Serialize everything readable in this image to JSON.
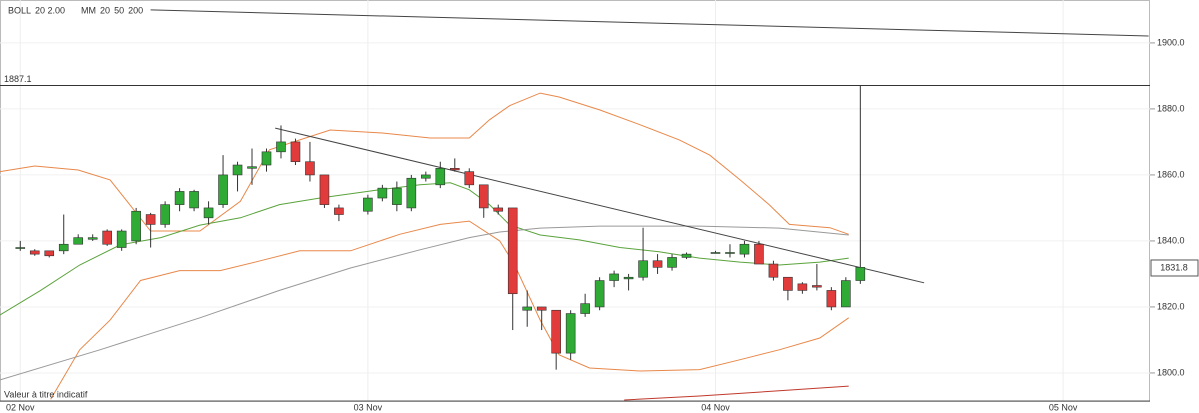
{
  "chart_data": {
    "type": "candlestick",
    "indicators": [
      {
        "name": "BOLL",
        "params": [
          {
            "text": "20 2.00",
            "color": "#e8884a"
          }
        ]
      },
      {
        "name": "MM",
        "params": [
          {
            "text": "20",
            "color": "#5aa33c"
          },
          {
            "text": "50",
            "color": "#999999"
          },
          {
            "text": "200",
            "color": "#c0392b"
          }
        ]
      }
    ],
    "up_color": "#2eaa35",
    "down_color": "#e23b3b",
    "x": [
      0,
      1,
      2,
      3,
      4,
      5,
      6,
      7,
      8,
      9,
      10,
      11,
      12,
      13,
      14,
      15,
      16,
      17,
      18,
      19,
      20,
      21,
      22,
      24,
      25,
      26,
      27,
      28,
      29,
      30,
      31,
      32,
      33,
      34,
      35,
      36,
      37,
      38,
      39,
      40,
      41,
      42,
      43,
      44,
      45,
      46,
      48,
      49,
      50,
      51,
      52,
      53,
      54,
      55,
      56,
      57,
      58
    ],
    "open": [
      1838,
      1837,
      1837,
      1837,
      1839,
      1840.5,
      1843,
      1838,
      1840,
      1848,
      1845,
      1851,
      1850,
      1847,
      1851,
      1860,
      1862,
      1863,
      1867,
      1870,
      1864,
      1860,
      1850,
      1849,
      1853,
      1851,
      1850,
      1859,
      1857,
      1862,
      1861,
      1857,
      1850,
      1850,
      1819,
      1820,
      1819,
      1806,
      1818,
      1820,
      1828,
      1828.5,
      1829,
      1834,
      1832,
      1835,
      1836.5,
      1836.5,
      1836,
      1839,
      1833,
      1829,
      1827,
      1826.5,
      1825,
      1820,
      1828
    ],
    "high": [
      1840,
      1837.5,
      1837,
      1848,
      1842,
      1842,
      1843.5,
      1843.5,
      1850,
      1848.5,
      1852,
      1856,
      1855.5,
      1852,
      1866,
      1864,
      1868,
      1868,
      1875,
      1871,
      1870,
      1860,
      1851,
      1854,
      1857,
      1858,
      1860,
      1861,
      1864,
      1865,
      1862,
      1857,
      1851,
      1850,
      1825,
      1820,
      1819,
      1819,
      1824,
      1829,
      1831,
      1830,
      1844,
      1836,
      1836,
      1836.5,
      1837,
      1839,
      1840,
      1840,
      1834,
      1829,
      1827.5,
      1833,
      1826,
      1829,
      1887.1
    ],
    "low": [
      1837,
      1835.5,
      1835,
      1836,
      1839,
      1840,
      1838.5,
      1837,
      1839,
      1838,
      1844,
      1849,
      1849,
      1845,
      1850,
      1855,
      1857,
      1861,
      1865,
      1863,
      1858,
      1850,
      1846,
      1848,
      1852,
      1849,
      1849,
      1858,
      1856,
      1861,
      1856,
      1847,
      1848,
      1813,
      1814,
      1813,
      1801,
      1804,
      1817,
      1819,
      1826,
      1825,
      1828,
      1830,
      1831,
      1834.5,
      1836.5,
      1835,
      1835,
      1833,
      1828,
      1822,
      1824,
      1825,
      1819,
      1820,
      1827
    ],
    "close": [
      1838,
      1836,
      1835.5,
      1839,
      1841,
      1841,
      1839,
      1843,
      1849,
      1845,
      1851,
      1855,
      1855,
      1850,
      1860,
      1863,
      1862.5,
      1867,
      1870,
      1864,
      1860,
      1851,
      1848,
      1853,
      1856,
      1856,
      1859,
      1860,
      1862,
      1861.5,
      1857,
      1850,
      1849,
      1824,
      1820,
      1819,
      1806,
      1818,
      1821,
      1828,
      1830,
      1829,
      1834,
      1832,
      1835,
      1836,
      1836.5,
      1836.5,
      1839,
      1833,
      1829,
      1825,
      1825,
      1826,
      1820,
      1828,
      1832
    ],
    "lines": [
      {
        "color": "#e8884a",
        "x": [
          -1.4,
          1,
          4,
          6.2,
          9,
          12.4,
          15.2,
          17.2,
          19.3,
          21.4,
          25,
          28.3,
          31,
          32.4,
          33.8,
          35.9,
          37.2,
          40,
          42.8,
          45.5,
          47.6,
          49.7,
          51.7,
          53.1,
          55.9,
          57.2
        ],
        "values": [
          1861,
          1862.7,
          1861.5,
          1858.5,
          1843,
          1843,
          1852,
          1867.6,
          1870.6,
          1873.6,
          1872.7,
          1871.2,
          1871.2,
          1876.7,
          1881,
          1884.8,
          1883.6,
          1879.7,
          1875.2,
          1870.6,
          1866,
          1858.5,
          1851,
          1845,
          1844,
          1842
        ]
      },
      {
        "color": "#e8884a",
        "x": [
          2.1,
          4.1,
          6.2,
          8.3,
          11,
          13.8,
          16.6,
          19.3,
          22.8,
          26.2,
          29,
          31,
          33.1,
          34.1,
          35.9,
          37.2,
          39.3,
          42.8,
          46.9,
          49.7,
          52.4,
          55.2,
          57.2
        ],
        "values": [
          1792,
          1807,
          1816,
          1828,
          1831,
          1831,
          1834,
          1837,
          1837,
          1842,
          1845,
          1846,
          1840,
          1833,
          1816,
          1805.5,
          1801.5,
          1800.6,
          1801,
          1804,
          1807,
          1810.6,
          1816.7
        ]
      },
      {
        "color": "#5aa33c",
        "x": [
          -1.4,
          1.4,
          4.1,
          6.9,
          9.7,
          12.4,
          15.2,
          17.9,
          20.7,
          24.8,
          27.6,
          29.7,
          31,
          32.4,
          33.8,
          35.9,
          38.6,
          41.4,
          44.1,
          46.9,
          49.7,
          52.4,
          55.2,
          57.2
        ],
        "values": [
          1817.6,
          1825,
          1832.7,
          1838.8,
          1841,
          1844.8,
          1847,
          1851,
          1853,
          1855.5,
          1857,
          1857.6,
          1855.5,
          1851,
          1844.8,
          1841.8,
          1840.3,
          1838,
          1836.7,
          1834.8,
          1833.6,
          1832.7,
          1833.6,
          1834.8
        ]
      },
      {
        "color": "#999999",
        "x": [
          -1.4,
          5.5,
          12.4,
          17.9,
          22.8,
          27.6,
          31,
          33.1,
          35.9,
          40,
          46.9,
          52.4,
          57.2
        ],
        "values": [
          1797.9,
          1807,
          1816.7,
          1825,
          1831.8,
          1837.3,
          1841,
          1842.7,
          1843.9,
          1844.5,
          1844.5,
          1843.9,
          1841.8
        ]
      },
      {
        "color": "#c0392b",
        "x": [
          41.7,
          46.9,
          52.4,
          57.2
        ],
        "values": [
          1791.8,
          1793,
          1794.6,
          1796
        ]
      }
    ],
    "trendlines": [
      {
        "x": [
          17.6,
          62.4
        ],
        "values": [
          1874.2,
          1827.3
        ]
      },
      {
        "x": [
          9,
          77.9
        ],
        "values": [
          1910,
          1902.1
        ]
      }
    ],
    "level": {
      "value": 1887.1,
      "label": "1887.1"
    },
    "last_price": {
      "value": 1831.8,
      "label": "1831.8"
    },
    "footnote": "Valeur à titre indicatif",
    "xlim": [
      -1.4,
      78
    ],
    "xticks": [
      {
        "value": 0,
        "label": "02 Nov"
      },
      {
        "value": 24,
        "label": "03 Nov"
      },
      {
        "value": 48,
        "label": "04 Nov"
      },
      {
        "value": 72,
        "label": "05 Nov"
      }
    ],
    "ylim": [
      1791.5,
      1913
    ],
    "yticks": [
      {
        "value": 1800,
        "label": "1800.0"
      },
      {
        "value": 1820,
        "label": "1820.0"
      },
      {
        "value": 1840,
        "label": "1840.0"
      },
      {
        "value": 1860,
        "label": "1860.0"
      },
      {
        "value": 1880,
        "label": "1880.0"
      },
      {
        "value": 1900,
        "label": "1900.0"
      }
    ]
  }
}
